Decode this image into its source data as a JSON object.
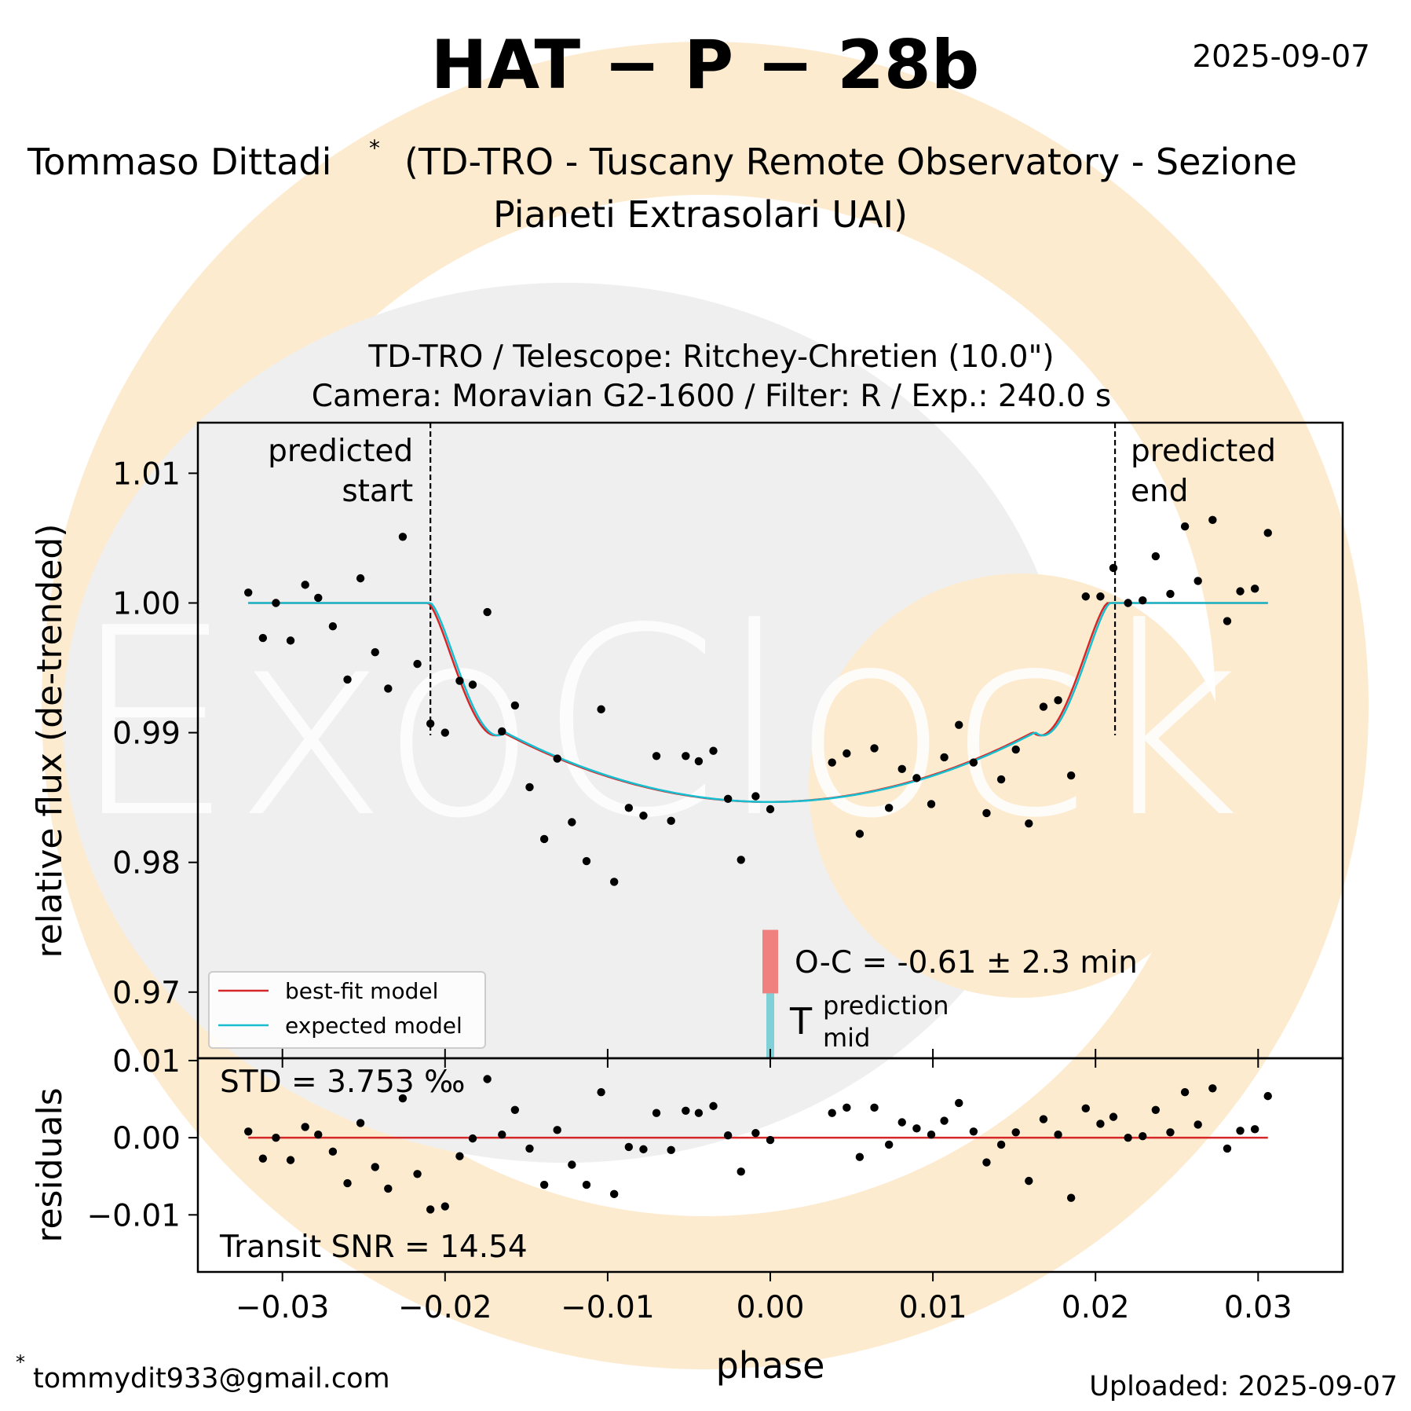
{
  "header": {
    "title": "HAT − P − 28b",
    "date": "2025-09-07",
    "observer_name": "Tommaso Dittadi",
    "observer_mark": "*",
    "observer_affiliation_line1": "(TD-TRO - Tuscany Remote Observatory - Sezione",
    "observer_affiliation_line2": "Pianeti Extrasolari UAI)"
  },
  "instrument": {
    "line1": "TD-TRO / Telescope: Ritchey-Chretien (10.0\")",
    "line2": "Camera: Moravian G2-1600 / Filter: R / Exp.: 240.0 s"
  },
  "footer": {
    "email_mark": "*",
    "email": "tommydit933@gmail.com",
    "uploaded": "Uploaded: 2025-09-07"
  },
  "annotations": {
    "predicted_start": [
      "predicted",
      "start"
    ],
    "predicted_end": [
      "predicted",
      "end"
    ],
    "oc": "O-C = -0.61 ± 2.3 min",
    "tmid_main": "T",
    "tmid_super": "prediction",
    "tmid_sub": "mid",
    "std": "STD = 3.753 ‰",
    "snr": "Transit SNR = 14.54"
  },
  "legend": {
    "best_fit": "best-fit model",
    "expected": "expected model"
  },
  "watermark": {
    "text": "ExoClock"
  },
  "colors": {
    "best_fit": "#d62728",
    "expected": "#17becf",
    "oc_bar": "#f08080",
    "tmid_bar": "#80d0d8",
    "points": "#000000",
    "logo_peach": "#fdebd0",
    "logo_grey": "#efefef"
  },
  "chart_data": {
    "type": "scatter",
    "xlabel": "phase",
    "ylabel_main": "relative flux (de-trended)",
    "ylabel_residuals": "residuals",
    "xlim": [
      -0.0352,
      0.0352
    ],
    "ylim_main": [
      0.9649,
      1.0139
    ],
    "ylim_residuals": [
      -0.0174,
      0.0103
    ],
    "xticks": [
      -0.03,
      -0.02,
      -0.01,
      0.0,
      0.01,
      0.02,
      0.03
    ],
    "xtick_labels": [
      "−0.03",
      "−0.02",
      "−0.01",
      "0.00",
      "0.01",
      "0.02",
      "0.03"
    ],
    "yticks_main": [
      0.97,
      0.98,
      0.99,
      1.0,
      1.01
    ],
    "ytick_labels_main": [
      "0.97",
      "0.98",
      "0.99",
      "1.00",
      "1.01"
    ],
    "yticks_residuals": [
      -0.01,
      0.0,
      0.01
    ],
    "ytick_labels_residuals": [
      "−0.01",
      "0.00",
      "0.01"
    ],
    "predicted_start": -0.0209,
    "predicted_end": 0.0212,
    "oc_bar": {
      "x": 0.0,
      "y0": 0.9699,
      "y1": 0.9748
    },
    "tmid_bar": {
      "x": 0.0,
      "y0": 0.9649,
      "y1": 0.9699
    },
    "model_params": {
      "depth": 0.01534,
      "t1": 0.0209,
      "t2": 0.0163,
      "curvature": 0.35,
      "ingress_power": 1.5
    },
    "phase": [
      -0.0321,
      -0.0312,
      -0.0304,
      -0.0295,
      -0.0286,
      -0.0278,
      -0.0269,
      -0.026,
      -0.0252,
      -0.0243,
      -0.0235,
      -0.0226,
      -0.0217,
      -0.0209,
      -0.02,
      -0.0191,
      -0.0183,
      -0.0174,
      -0.0165,
      -0.0157,
      -0.0148,
      -0.0139,
      -0.0131,
      -0.0122,
      -0.0113,
      -0.0104,
      -0.0096,
      -0.0087,
      -0.0078,
      -0.007,
      -0.0061,
      -0.0052,
      -0.0044,
      -0.0035,
      -0.0026,
      -0.0018,
      -0.0009,
      0.0,
      0.0038,
      0.0047,
      0.0055,
      0.0064,
      0.0073,
      0.0081,
      0.009,
      0.0099,
      0.0107,
      0.0116,
      0.0125,
      0.0133,
      0.0142,
      0.0151,
      0.0159,
      0.0168,
      0.0177,
      0.0185,
      0.0194,
      0.0203,
      0.0211,
      0.022,
      0.0229,
      0.0237,
      0.0246,
      0.0255,
      0.0263,
      0.0272,
      0.0281,
      0.0289,
      0.0298,
      0.0306
    ],
    "flux": [
      1.0008,
      0.9973,
      1.0,
      0.9971,
      1.0014,
      1.0004,
      0.9982,
      0.9941,
      1.0019,
      0.9962,
      0.9934,
      1.0051,
      0.9953,
      0.9907,
      0.99,
      0.994,
      0.9937,
      0.9993,
      0.9901,
      0.9921,
      0.9858,
      0.9818,
      0.988,
      0.9831,
      0.9801,
      0.9918,
      0.9785,
      0.9842,
      0.9836,
      0.9882,
      0.9832,
      0.9882,
      0.9878,
      0.9886,
      0.9849,
      0.9802,
      0.9851,
      0.9841,
      0.9877,
      0.9884,
      0.9822,
      0.9888,
      0.9842,
      0.9872,
      0.9865,
      0.9845,
      0.9881,
      0.9906,
      0.9877,
      0.9838,
      0.9864,
      0.9887,
      0.983,
      0.992,
      0.9925,
      0.9867,
      1.0005,
      1.0005,
      1.0027,
      1.0,
      1.0002,
      1.0036,
      1.0007,
      1.0059,
      1.0017,
      1.0064,
      0.9986,
      1.0009,
      1.0011,
      1.0054
    ],
    "residuals": [
      0.0008,
      -0.0027,
      0.0,
      -0.0029,
      0.0014,
      0.0004,
      -0.0018,
      -0.0059,
      0.0019,
      -0.0038,
      -0.0066,
      0.0051,
      -0.0047,
      -0.0093,
      -0.0089,
      -0.0024,
      -0.0001,
      0.0076,
      0.0004,
      0.0036,
      -0.0014,
      -0.0061,
      0.001,
      -0.0035,
      -0.0061,
      0.0059,
      -0.0073,
      -0.0012,
      -0.0015,
      0.0032,
      -0.0016,
      0.0035,
      0.0032,
      0.0041,
      0.0003,
      -0.0044,
      0.0006,
      -0.0003,
      0.0032,
      0.0039,
      -0.0025,
      0.0039,
      -0.0009,
      0.002,
      0.0012,
      0.0004,
      0.0022,
      0.0045,
      0.0008,
      -0.0032,
      -0.0009,
      0.0007,
      -0.0056,
      0.0024,
      0.0004,
      -0.0078,
      0.0038,
      0.0018,
      0.0027,
      0.0,
      0.0002,
      0.0036,
      0.0007,
      0.0059,
      0.0017,
      0.0064,
      -0.0014,
      0.0009,
      0.0011,
      0.0054
    ]
  }
}
